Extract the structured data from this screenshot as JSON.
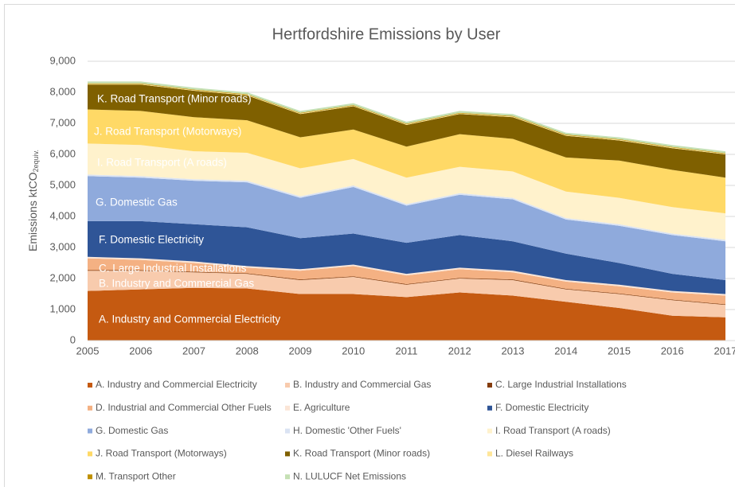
{
  "chart_data": {
    "type": "stacked_area",
    "title": "Hertfordshire Emissions by User",
    "y_label": "Emissions ktCO",
    "y_label_sub": "2equiv.",
    "categories": [
      "2005",
      "2006",
      "2007",
      "2008",
      "2009",
      "2010",
      "2011",
      "2012",
      "2013",
      "2014",
      "2015",
      "2016",
      "2017"
    ],
    "ylim": [
      0,
      9000
    ],
    "yticks": [
      0,
      {
        "value": 1000,
        "label": "1,000"
      },
      {
        "value": 2000,
        "label": "2,000"
      },
      {
        "value": 3000,
        "label": "3,000"
      },
      {
        "value": 4000,
        "label": "4,000"
      },
      {
        "value": 5000,
        "label": "5,000"
      },
      {
        "value": 6000,
        "label": "6,000"
      },
      {
        "value": 7000,
        "label": "7,000"
      },
      {
        "value": 8000,
        "label": "8,000"
      },
      {
        "value": 9000,
        "label": "9,000"
      }
    ],
    "grid": true,
    "legend": "bottom",
    "series": [
      {
        "name": "A. Industry and Commercial Electricity",
        "color": "#c55a11",
        "values": [
          1600,
          1650,
          1700,
          1680,
          1500,
          1500,
          1400,
          1550,
          1450,
          1250,
          1050,
          800,
          750
        ]
      },
      {
        "name": "B. Industry and Commercial Gas",
        "color": "#f8cbad",
        "values": [
          650,
          600,
          500,
          470,
          450,
          550,
          400,
          450,
          500,
          400,
          450,
          500,
          400
        ]
      },
      {
        "name": "C. Large Industrial Installations",
        "color": "#843c0c",
        "values": [
          20,
          20,
          20,
          20,
          20,
          20,
          20,
          20,
          20,
          20,
          20,
          20,
          20
        ]
      },
      {
        "name": "D. Industrial and Commercial Other Fuels",
        "color": "#f4b183",
        "values": [
          380,
          330,
          280,
          180,
          280,
          330,
          280,
          280,
          230,
          230,
          230,
          230,
          280
        ]
      },
      {
        "name": "E. Agriculture",
        "color": "#fbe5d6",
        "values": [
          50,
          50,
          50,
          50,
          50,
          50,
          50,
          50,
          50,
          50,
          50,
          50,
          50
        ]
      },
      {
        "name": "F. Domestic Electricity",
        "color": "#2f5597",
        "values": [
          1150,
          1200,
          1200,
          1250,
          1000,
          1000,
          1000,
          1050,
          950,
          850,
          700,
          550,
          450
        ]
      },
      {
        "name": "G. Domestic Gas",
        "color": "#8faadc",
        "values": [
          1450,
          1400,
          1400,
          1450,
          1300,
          1500,
          1200,
          1300,
          1350,
          1100,
          1200,
          1250,
          1250
        ]
      },
      {
        "name": "H. Domestic 'Other Fuels'",
        "color": "#dae3f3",
        "values": [
          50,
          50,
          50,
          50,
          50,
          50,
          50,
          50,
          50,
          50,
          50,
          50,
          50
        ]
      },
      {
        "name": "I. Road Transport (A roads)",
        "color": "#fff2cc",
        "values": [
          1000,
          1000,
          900,
          900,
          900,
          850,
          850,
          850,
          850,
          850,
          850,
          850,
          850
        ]
      },
      {
        "name": "J. Road Transport (Motorways)",
        "color": "#ffd966",
        "values": [
          1100,
          1100,
          1100,
          1050,
          1000,
          950,
          1000,
          1050,
          1050,
          1100,
          1200,
          1200,
          1150
        ]
      },
      {
        "name": "K. Road Transport (Minor roads)",
        "color": "#7f6000",
        "values": [
          800,
          850,
          850,
          800,
          750,
          750,
          700,
          650,
          700,
          700,
          650,
          700,
          750
        ]
      },
      {
        "name": "L. Diesel Railways",
        "color": "#ffe699",
        "values": [
          20,
          20,
          20,
          20,
          20,
          20,
          20,
          20,
          20,
          20,
          20,
          20,
          20
        ]
      },
      {
        "name": "M. Transport Other",
        "color": "#bf9000",
        "values": [
          20,
          20,
          20,
          20,
          20,
          20,
          20,
          20,
          20,
          20,
          20,
          20,
          20
        ]
      },
      {
        "name": "N. LULUCF Net Emissions",
        "color": "#c5e0b4",
        "values": [
          60,
          60,
          60,
          60,
          60,
          60,
          60,
          60,
          60,
          60,
          60,
          60,
          60
        ]
      }
    ]
  }
}
